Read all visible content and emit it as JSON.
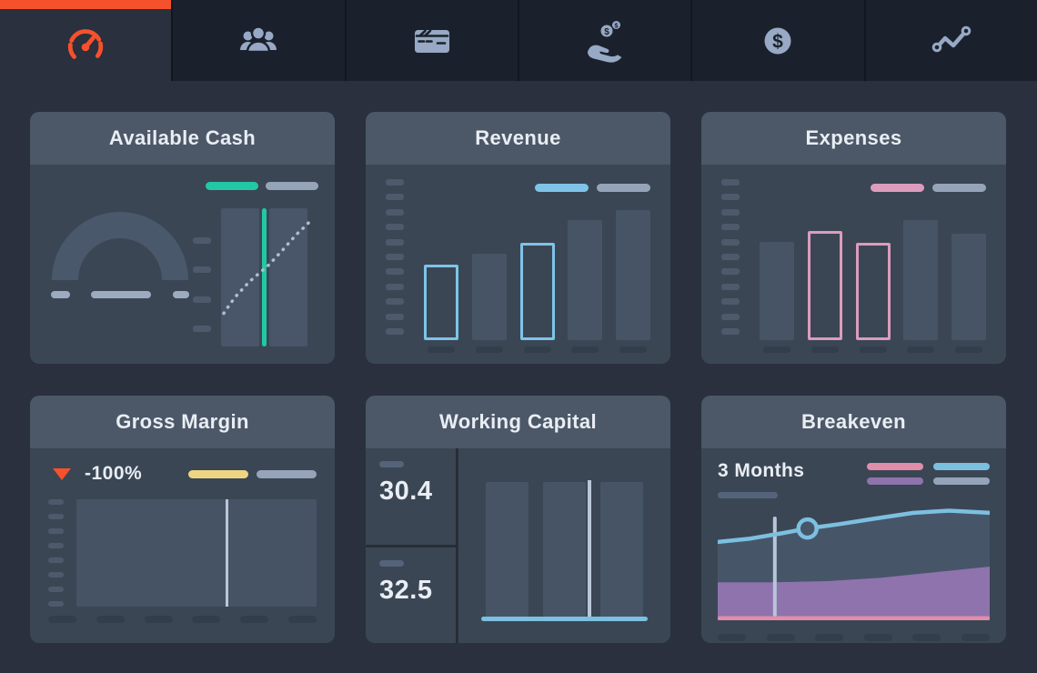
{
  "colors": {
    "accent_orange": "#f4512c",
    "background": "#2a303d",
    "tab_background": "#1b212c",
    "card": "#3b4654",
    "card_header": "#4c5867",
    "text": "#e9edf4",
    "muted_pill": "#96a4ba",
    "teal": "#22c8a5",
    "light_blue": "#7cc0e0",
    "outline_blue": "#7ec4e8",
    "pink": "#e08ea9",
    "outline_pink": "#dc9cbe",
    "purple": "#8e73ad",
    "yellow": "#eed584",
    "highlight_line": "#b9c6da"
  },
  "tabs": [
    {
      "id": "dashboard",
      "icon": "speedometer-icon",
      "active": true
    },
    {
      "id": "contacts",
      "icon": "users-icon",
      "active": false
    },
    {
      "id": "cheque",
      "icon": "cheque-icon",
      "active": false
    },
    {
      "id": "income",
      "icon": "income-hand-icon",
      "active": false
    },
    {
      "id": "money",
      "icon": "dollar-coin-icon",
      "active": false
    },
    {
      "id": "trends",
      "icon": "trend-line-icon",
      "active": false
    }
  ],
  "cards": {
    "available_cash": {
      "title": "Available Cash",
      "chart_data": {
        "type": "gauge+trend",
        "gauge": {
          "shape": "semicircle-arc",
          "value_shown": false
        },
        "slider_segments": 3,
        "legend_colors": [
          "#22c8a5",
          "#96a4ba"
        ],
        "trend": {
          "columns": 2,
          "y_ticks": 4,
          "highlight_line_color": "#22c8a5",
          "dotted_trend_points": [
            [
              3,
              76
            ],
            [
              10,
              69
            ],
            [
              17,
              63
            ],
            [
              24,
              58
            ],
            [
              31,
              53
            ],
            [
              38,
              49
            ],
            [
              45,
              45
            ],
            [
              52,
              41
            ],
            [
              59,
              36
            ],
            [
              66,
              31
            ],
            [
              74,
              25
            ],
            [
              82,
              19
            ],
            [
              90,
              14
            ],
            [
              96,
              10
            ]
          ]
        }
      }
    },
    "revenue": {
      "title": "Revenue",
      "chart_data": {
        "type": "bar",
        "values": [
          48,
          55,
          62,
          77,
          83
        ],
        "highlighted": [
          0,
          2
        ],
        "highlight_color": "#7ec4e8",
        "y_ticks": 11,
        "x_ticks": 5,
        "legend_colors": [
          "#7ec4e8",
          "#96a4ba"
        ]
      }
    },
    "expenses": {
      "title": "Expenses",
      "chart_data": {
        "type": "bar",
        "values": [
          63,
          70,
          62,
          77,
          68
        ],
        "highlighted": [
          1,
          2
        ],
        "highlight_color": "#dc9cbe",
        "y_ticks": 11,
        "x_ticks": 5,
        "legend_colors": [
          "#dc9cbe",
          "#96a4ba"
        ]
      }
    },
    "gross_margin": {
      "title": "Gross Margin",
      "change_label": "-100%",
      "change_direction": "down",
      "chart_data": {
        "type": "area-block",
        "vline_x_pct": 62,
        "y_ticks": 8,
        "x_ticks": 6,
        "legend_colors": [
          "#eed584",
          "#96a4ba"
        ]
      }
    },
    "working_capital": {
      "title": "Working Capital",
      "chart_data": {
        "type": "columns",
        "stat_values": [
          "30.4",
          "32.5"
        ],
        "bars": 3,
        "vline_x_pct": 65,
        "baseline_color": "#7cc0e0"
      }
    },
    "breakeven": {
      "title": "Breakeven",
      "period_label": "3 Months",
      "chart_data": {
        "type": "area-line",
        "x_ticks": 6,
        "legend_colors": [
          "#e08ea9",
          "#7cc0e0",
          "#8e73ad",
          "#96a4ba"
        ],
        "line_color": "#7cc0e0",
        "band_fill": "#475569",
        "area_fill": "#8e73ad",
        "baseline_color": "#e08ea9",
        "vline_x_pct": 21,
        "marker": [
          33,
          18
        ],
        "line_points": [
          [
            0,
            30
          ],
          [
            12,
            27
          ],
          [
            24,
            22
          ],
          [
            33,
            18
          ],
          [
            45,
            14
          ],
          [
            58,
            9
          ],
          [
            72,
            4
          ],
          [
            85,
            2
          ],
          [
            93,
            3
          ],
          [
            100,
            4
          ]
        ],
        "band_top_points": [
          [
            0,
            66
          ],
          [
            20,
            66
          ],
          [
            40,
            65
          ],
          [
            60,
            62
          ],
          [
            80,
            57
          ],
          [
            100,
            52
          ]
        ]
      }
    }
  }
}
